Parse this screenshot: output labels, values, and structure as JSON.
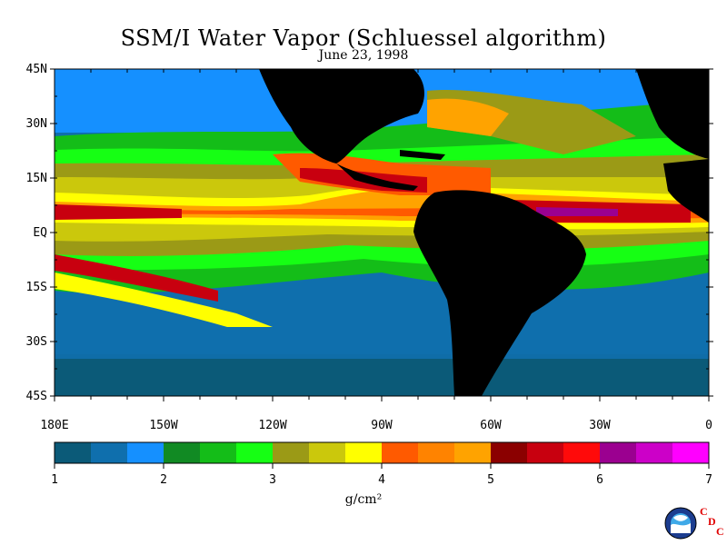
{
  "title": "SSM/I Water Vapor (Schluessel algorithm)",
  "subtitle": "June 23, 1998",
  "latitude_labels": [
    "45N",
    "30N",
    "15N",
    "EQ",
    "15S",
    "30S",
    "45S"
  ],
  "longitude_labels": [
    "180E",
    "150W",
    "120W",
    "90W",
    "60W",
    "30W",
    "0"
  ],
  "colorbar": {
    "ticks": [
      "1",
      "2",
      "3",
      "4",
      "5",
      "6",
      "7"
    ],
    "units": "g/cm²",
    "colors": [
      "#0b5a78",
      "#0f6fad",
      "#1590ff",
      "#118a23",
      "#14bd18",
      "#16ff14",
      "#9b9a16",
      "#cbc80c",
      "#ffff00",
      "#ff5a00",
      "#ff8300",
      "#ffa300",
      "#8b0000",
      "#c8000f",
      "#ff0a0a",
      "#9b0090",
      "#cc00c8",
      "#ff00ff"
    ]
  },
  "logo": {
    "name": "NOAA",
    "cdc": [
      "C",
      "D",
      "C"
    ]
  },
  "colors": {
    "land": "#000000",
    "ocean_dry": "#0b5a78"
  }
}
